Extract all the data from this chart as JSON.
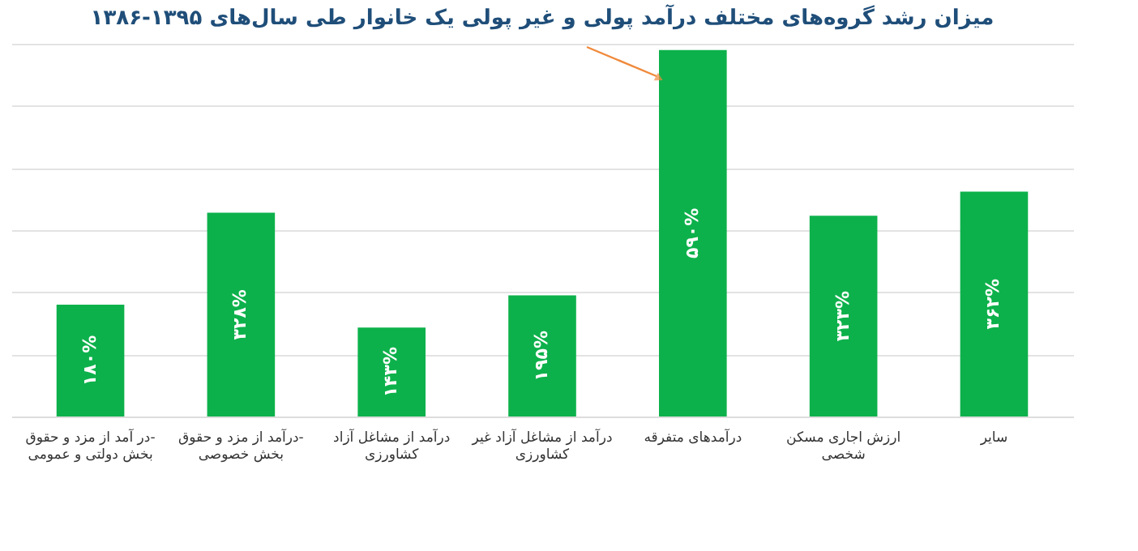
{
  "chart_data": {
    "type": "bar",
    "title": "میزان رشد گروه‌های مختلف درآمد پولی و غیر پولی یک خانوار طی سال‌های ۱۳۹۵-۱۳۸۶",
    "categories": [
      "در آمد از مزد و حقوق-\nبخش دولتی و عمومی",
      "درآمد از مزد و حقوق-\nبخش خصوصی",
      "درآمد از مشاغل آزاد\nکشاورزی",
      "درآمد از مشاغل آزاد غیر\nکشاورزی",
      "درآمدهای متفرقه",
      "ارزش اجاری مسکن\nشخصی",
      "سایر"
    ],
    "values": [
      180,
      328,
      143,
      195,
      590,
      323,
      362
    ],
    "value_labels": [
      "۱۸۰%",
      "۳۲۸%",
      "۱۴۳%",
      "۱۹۵%",
      "۵۹۰%",
      "۳۲۳%",
      "۳۶۲%"
    ],
    "color": "#0db14b",
    "grid": "y",
    "tick_labels": "x"
  }
}
